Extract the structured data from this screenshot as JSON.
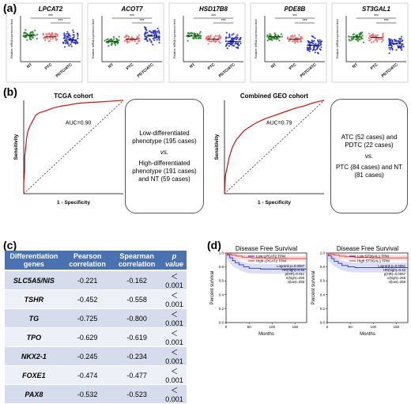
{
  "panels": {
    "a": "(a)",
    "b": "(b)",
    "c": "(c)",
    "d": "(d)"
  },
  "panel_a": {
    "groups": [
      "NT",
      "PTC",
      "PDTC/ATC"
    ],
    "ylabel": "Relative mRNA expression level",
    "sig": "***",
    "plots": [
      {
        "title": "LPCAT2",
        "means": [
          0.72,
          0.68,
          0.6
        ]
      },
      {
        "title": "ACOT7",
        "means": [
          0.55,
          0.62,
          0.7
        ]
      },
      {
        "title": "HSD17B8",
        "means": [
          0.7,
          0.62,
          0.55
        ]
      },
      {
        "title": "PDE8B",
        "means": [
          0.68,
          0.62,
          0.45
        ]
      },
      {
        "title": "ST3GAL1",
        "means": [
          0.68,
          0.66,
          0.5
        ]
      }
    ]
  },
  "panel_b": {
    "roc": [
      {
        "title": "TCGA cohort",
        "auc": "AUC=0.90",
        "xlabel": "1 - Specificity",
        "ylabel": "Sensitivity"
      },
      {
        "title": "Combined GEO cohort",
        "auc": "AUC=0.79",
        "xlabel": "1 - Specificity",
        "ylabel": "Sensitivity"
      }
    ],
    "box1": {
      "line1": "Low-differentiated phenotype (195 cases)",
      "vs": "vs.",
      "line2": "High-differentiated phenotype (191 cases) and NT (59 cases)"
    },
    "box2": {
      "line1": "ATC (52 cases) and PDTC (22 cases)",
      "vs": "vs.",
      "line2": "PTC (84 cases) and NT (81 cases)"
    }
  },
  "table": {
    "headers": [
      "Differentiation genes",
      "Pearson correlation",
      "Spearman correlation",
      "p value"
    ],
    "rows": [
      [
        "SLC5A5/NIS",
        "-0.221",
        "-0.162",
        "＜0.001"
      ],
      [
        "TSHR",
        "-0.452",
        "-0.558",
        "＜0.001"
      ],
      [
        "TG",
        "-0.725",
        "-0.800",
        "＜0.001"
      ],
      [
        "TPO",
        "-0.629",
        "-0.619",
        "＜0.001"
      ],
      [
        "NKX2-1",
        "-0.245",
        "-0.234",
        "＜0.001"
      ],
      [
        "FOXE1",
        "-0.474",
        "-0.477",
        "＜0.001"
      ],
      [
        "PAX8",
        "-0.532",
        "-0.523",
        "＜0.001"
      ]
    ]
  },
  "panel_d": {
    "xlabel": "Months",
    "ylabel": "Percent survival",
    "plots": [
      {
        "title": "Disease Free Survival",
        "legend_low": "Low LPCAT2 TPM",
        "legend_high": "High LPCAT2 TPM",
        "stats": [
          "Logrank p=0.0087",
          "HR(high)=0.45",
          "p(HR)=0.011",
          "n(high)=255",
          "n(low)=255"
        ]
      },
      {
        "title": "Disease Free Survival",
        "legend_low": "Low ST3GAL1 TPM",
        "legend_high": "High ST3GAL1 TPM",
        "stats": [
          "Logrank p=0.0051",
          "HR(high)=0.42",
          "p(HR)=0.0067",
          "n(high)=255",
          "n(low)=255"
        ]
      }
    ],
    "xticks": [
      "0",
      "50",
      "100",
      "150"
    ],
    "yticks": [
      "0.0",
      "0.2",
      "0.4",
      "0.6",
      "0.8",
      "1.0"
    ]
  },
  "colors": {
    "nt": "#2e8b2e",
    "ptc": "#f07070",
    "atc": "#2a34c8",
    "high": "#e03030",
    "low": "#2a34c8",
    "table_header": "#4a72b0"
  }
}
